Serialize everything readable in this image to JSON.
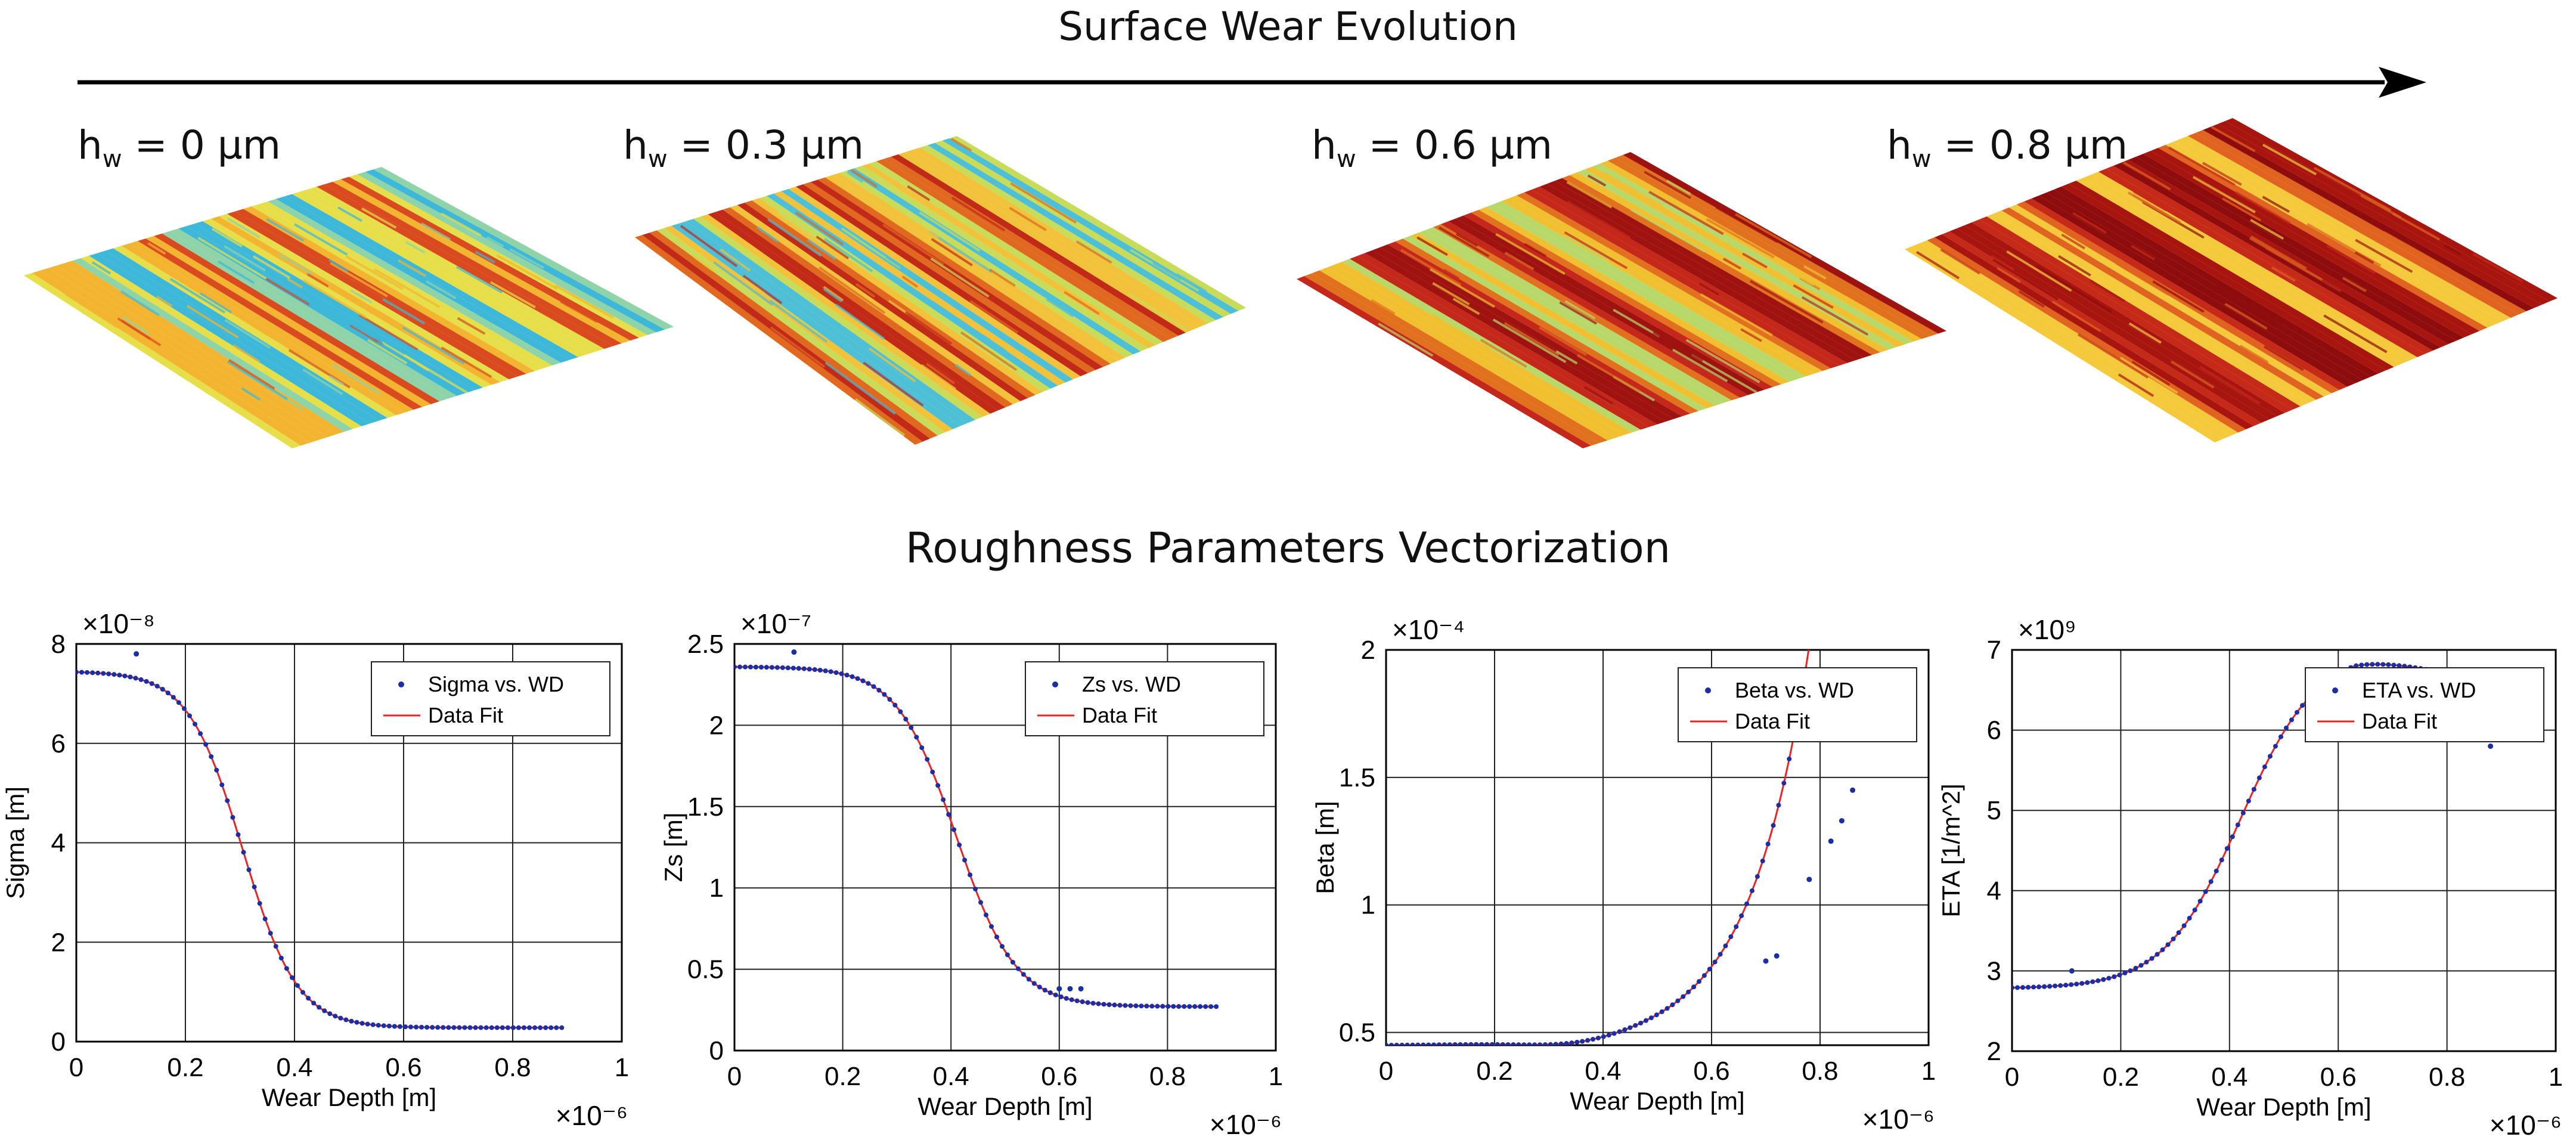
{
  "titles": {
    "wear": "Surface Wear Evolution",
    "roughness": "Roughness Parameters Vectorization"
  },
  "surfaces": [
    {
      "prefix": "h",
      "sub": "w",
      "value": " = 0 µm",
      "colors": [
        "#3db8d8",
        "#8fd3a8",
        "#e6df4a",
        "#f3b530",
        "#d94a1f"
      ]
    },
    {
      "prefix": "h",
      "sub": "w",
      "value": " = 0.3 µm",
      "colors": [
        "#4dbfd6",
        "#c8dc5a",
        "#f1c23a",
        "#e0681f",
        "#c22a18"
      ]
    },
    {
      "prefix": "h",
      "sub": "w",
      "value": " = 0.6 µm",
      "colors": [
        "#b8d86a",
        "#f0c030",
        "#e2711f",
        "#c3281a",
        "#9e1210"
      ]
    },
    {
      "prefix": "h",
      "sub": "w",
      "value": " = 0.8 µm",
      "colors": [
        "#f4c93c",
        "#e06420",
        "#c52a19",
        "#a8150f",
        "#8e0c0c"
      ]
    }
  ],
  "chart_data": [
    {
      "type": "scatter",
      "title": "",
      "xlabel": "Wear Depth [m]",
      "ylabel": "Sigma [m]",
      "x_exponent": "×10⁻⁶",
      "y_exponent": "×10⁻⁸",
      "xlim": [
        0,
        1
      ],
      "ylim": [
        0,
        8
      ],
      "xticks": [
        0,
        0.2,
        0.4,
        0.6,
        0.8,
        1
      ],
      "xtick_labels": [
        "0",
        "0.2",
        "0.4",
        "0.6",
        "0.8",
        "1"
      ],
      "yticks": [
        0,
        2,
        4,
        6,
        8
      ],
      "ytick_labels": [
        "0",
        "2",
        "4",
        "6",
        "8"
      ],
      "legend": {
        "position": "top-right",
        "entries": [
          "Sigma vs. WD",
          "Data Fit"
        ]
      },
      "fit": {
        "shape": "sigmoid",
        "start": 7.45,
        "end": 0.28,
        "center": 0.305,
        "width": 0.05
      },
      "outliers": [
        [
          0.11,
          7.8
        ]
      ],
      "x_max_data": 0.89
    },
    {
      "type": "scatter",
      "title": "",
      "xlabel": "Wear Depth [m]",
      "ylabel": "Zs [m]",
      "x_exponent": "×10⁻⁶",
      "y_exponent": "×10⁻⁷",
      "xlim": [
        0,
        1
      ],
      "ylim": [
        0,
        2.5
      ],
      "xticks": [
        0,
        0.2,
        0.4,
        0.6,
        0.8,
        1
      ],
      "xtick_labels": [
        "0",
        "0.2",
        "0.4",
        "0.6",
        "0.8",
        "1"
      ],
      "yticks": [
        0,
        0.5,
        1,
        1.5,
        2,
        2.5
      ],
      "ytick_labels": [
        "0",
        "0.5",
        "1",
        "1.5",
        "2",
        "2.5"
      ],
      "legend": {
        "position": "top-right",
        "entries": [
          "Zs vs. WD",
          "Data Fit"
        ]
      },
      "fit": {
        "shape": "sigmoid",
        "start": 2.36,
        "end": 0.27,
        "center": 0.41,
        "width": 0.055
      },
      "outliers": [
        [
          0.11,
          2.45
        ],
        [
          0.6,
          0.38
        ],
        [
          0.62,
          0.38
        ],
        [
          0.64,
          0.38
        ]
      ],
      "x_max_data": 0.89
    },
    {
      "type": "scatter",
      "title": "",
      "xlabel": "Wear Depth [m]",
      "ylabel": "Beta [m]",
      "x_exponent": "×10⁻⁶",
      "y_exponent": "×10⁻⁴",
      "xlim": [
        0,
        1
      ],
      "ylim": [
        0.45,
        2
      ],
      "xticks": [
        0,
        0.2,
        0.4,
        0.6,
        0.8,
        1
      ],
      "xtick_labels": [
        "0",
        "0.2",
        "0.4",
        "0.6",
        "0.8",
        "1"
      ],
      "yticks": [
        0.5,
        1,
        1.5,
        2
      ],
      "ytick_labels": [
        "0.5",
        "1",
        "1.5",
        "2"
      ],
      "legend": {
        "position": "top-right",
        "entries": [
          "Beta vs. WD",
          "Data Fit"
        ]
      },
      "fit": {
        "shape": "exp",
        "base": 0.45,
        "amp": 0.0014,
        "rate": 9.0,
        "min_at": 0.35,
        "dip": 0.02
      },
      "outliers": [
        [
          0.78,
          1.1
        ],
        [
          0.82,
          1.25
        ],
        [
          0.84,
          1.33
        ],
        [
          0.86,
          1.45
        ],
        [
          0.7,
          0.78
        ],
        [
          0.72,
          0.8
        ]
      ],
      "x_max_data": 0.88
    },
    {
      "type": "scatter",
      "title": "",
      "xlabel": "Wear Depth [m]",
      "ylabel": "ETA [1/m^2]",
      "x_exponent": "×10⁻⁶",
      "y_exponent": "×10⁹",
      "xlim": [
        0,
        1
      ],
      "ylim": [
        2,
        7
      ],
      "xticks": [
        0,
        0.2,
        0.4,
        0.6,
        0.8,
        1
      ],
      "xtick_labels": [
        "0",
        "0.2",
        "0.4",
        "0.6",
        "0.8",
        "1"
      ],
      "yticks": [
        2,
        3,
        4,
        5,
        6,
        7
      ],
      "ytick_labels": [
        "2",
        "3",
        "4",
        "5",
        "6",
        "7"
      ],
      "legend": {
        "position": "top-right",
        "entries": [
          "ETA vs. WD",
          "Data Fit"
        ]
      },
      "fit": {
        "shape": "sigmoid",
        "start": 2.78,
        "end": 7.0,
        "center": 0.42,
        "width": 0.07,
        "decay": 1.6
      },
      "outliers": [
        [
          0.11,
          3.0
        ],
        [
          0.88,
          5.8
        ]
      ],
      "x_max_data": 0.89
    }
  ]
}
